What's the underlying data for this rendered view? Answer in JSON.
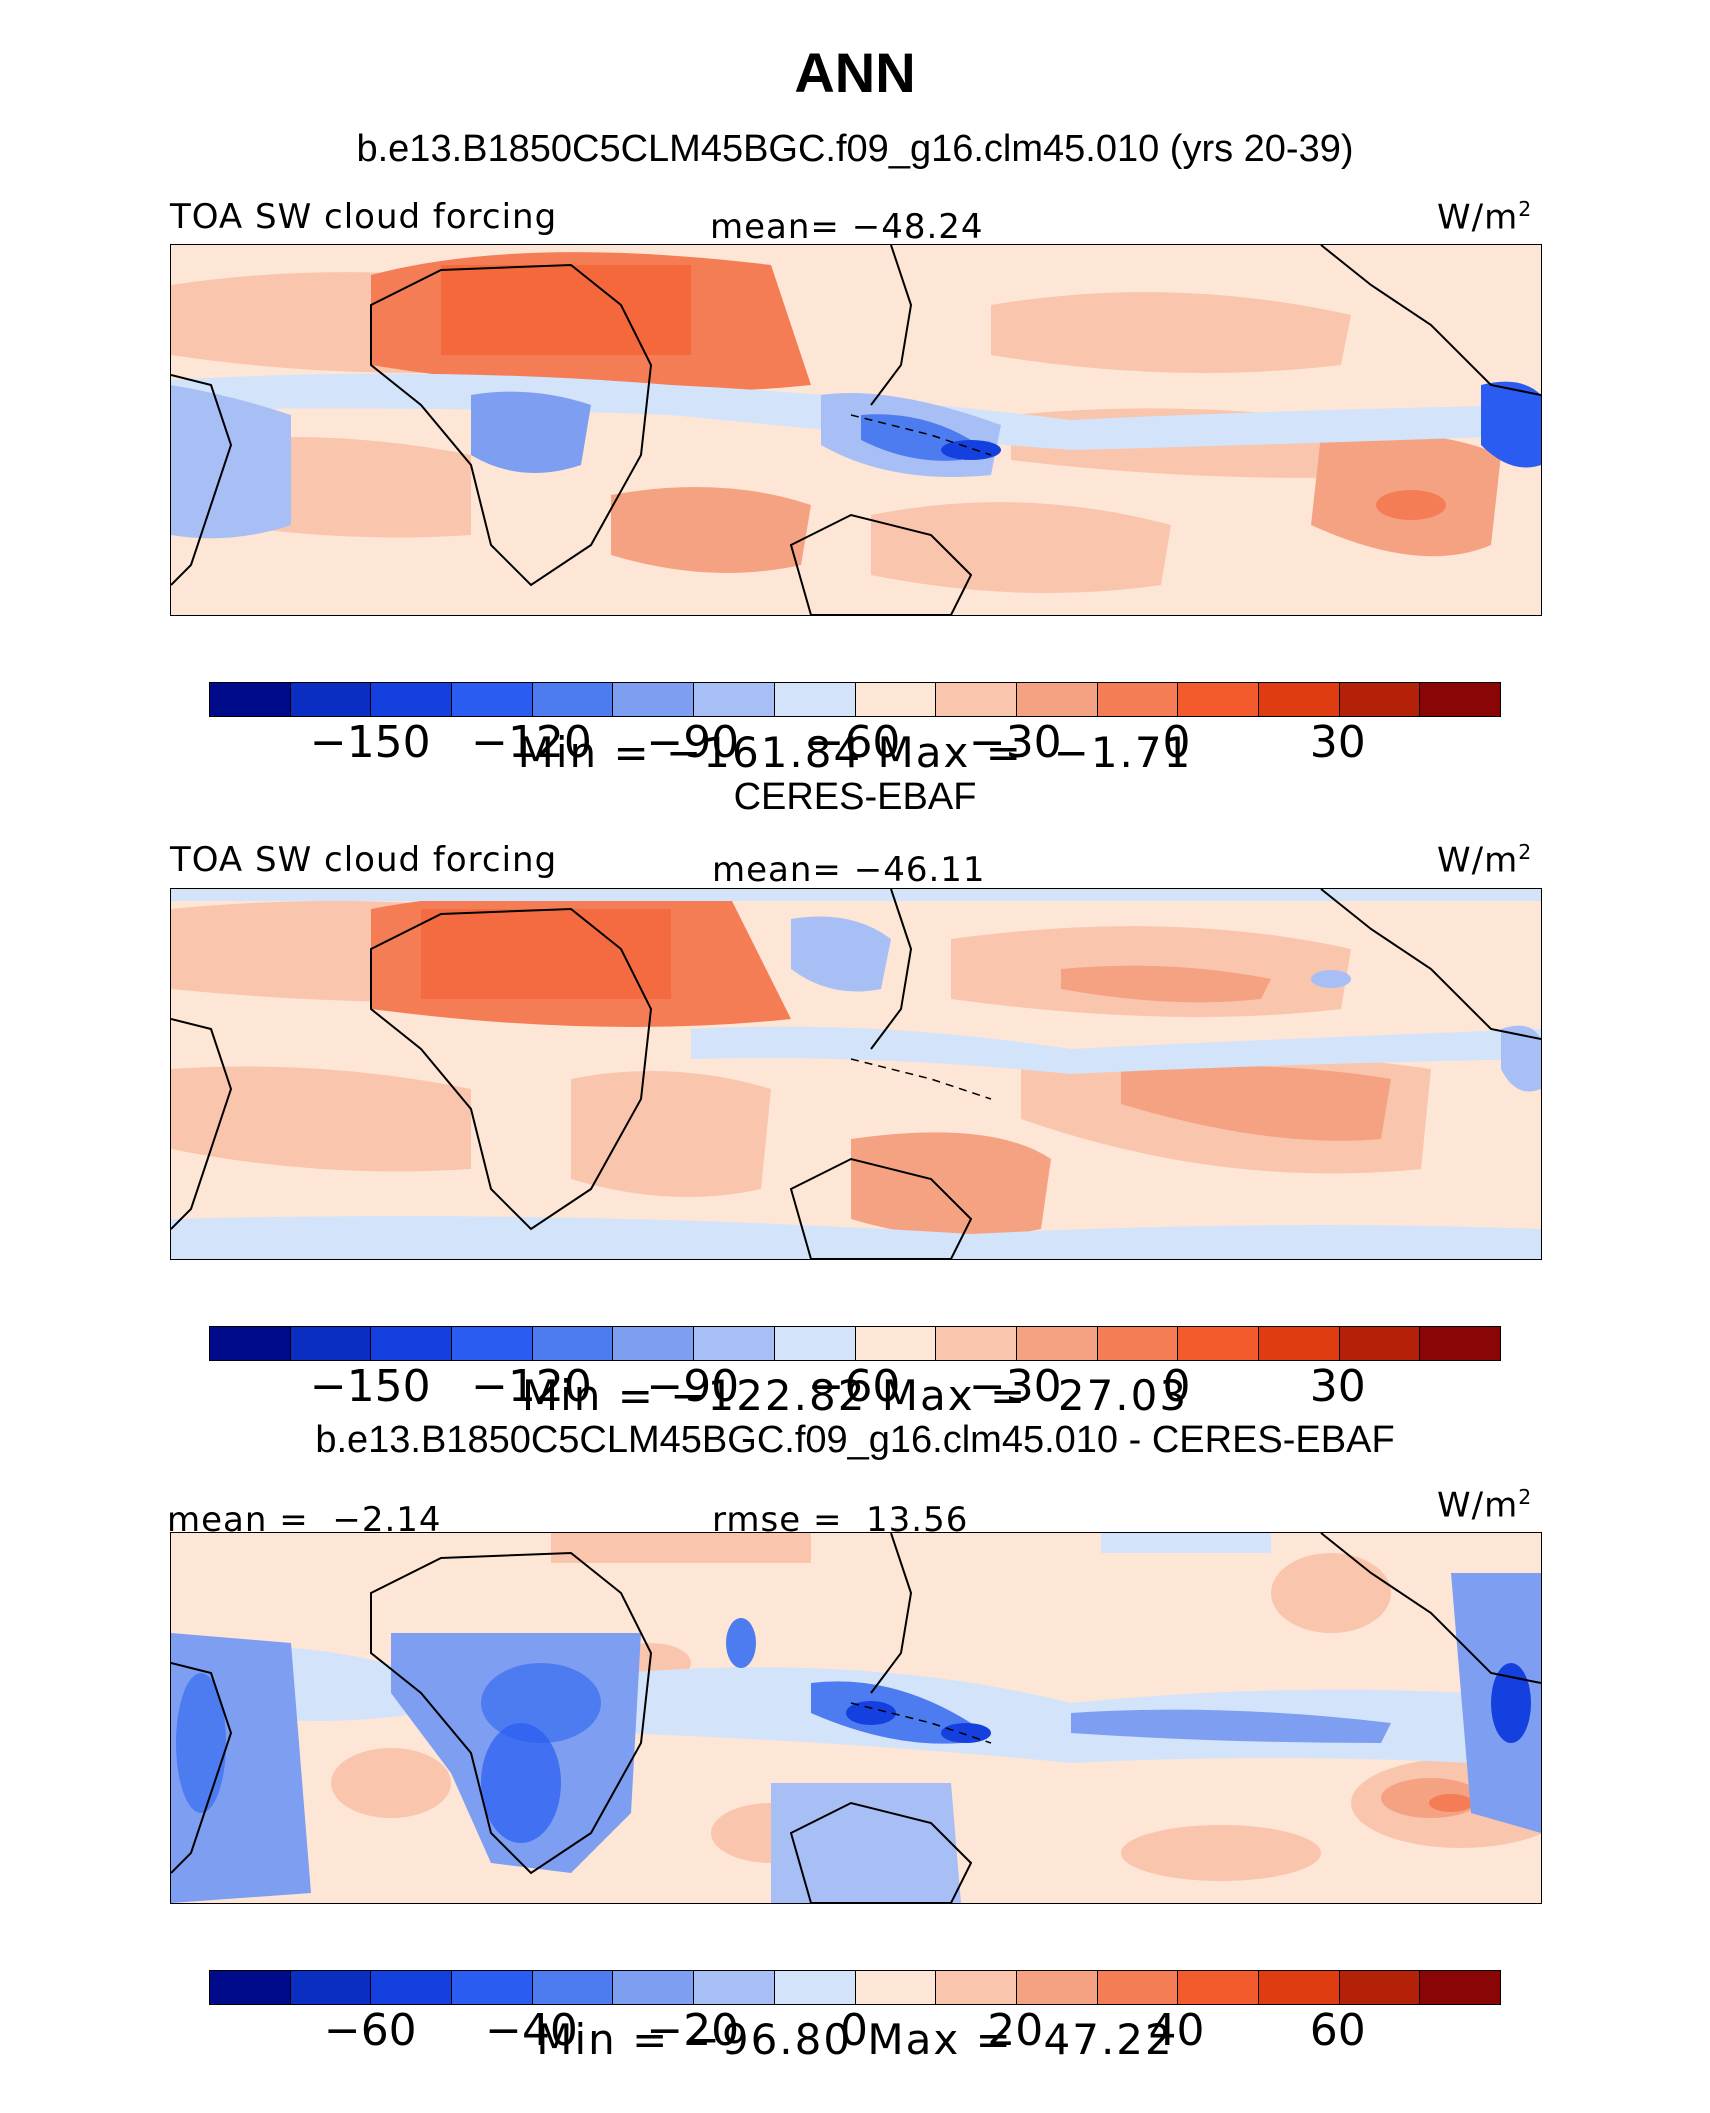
{
  "title": "ANN",
  "units_word": "W/m",
  "units_sup": "2",
  "panels": [
    {
      "heading": "b.e13.B1850C5CLM45BGC.f09_g16.clm45.010 (yrs 20-39)",
      "left_label": "TOA SW cloud forcing",
      "center_label": "mean= −48.24",
      "stats": "Min = −161.84 Max =  −1.71",
      "colorbar_colors": [
        "#000b8c",
        "#0a2ec2",
        "#1440e0",
        "#2a5cf2",
        "#4d7bf0",
        "#7e9ef2",
        "#a8bff5",
        "#d3e3fa",
        "#fde6d6",
        "#f9c5ad",
        "#f5a283",
        "#f47d56",
        "#f35a2c",
        "#e03c12",
        "#b32109",
        "#8a0505"
      ],
      "ticks": [
        "−150",
        "−120",
        "−90",
        "−60",
        "−30",
        "0",
        "30"
      ]
    },
    {
      "heading": "CERES-EBAF",
      "left_label": "TOA SW cloud forcing",
      "center_label": "mean= −46.11",
      "stats": "Min = −122.82 Max =  27.03",
      "colorbar_colors": [
        "#000b8c",
        "#0a2ec2",
        "#1440e0",
        "#2a5cf2",
        "#4d7bf0",
        "#7e9ef2",
        "#a8bff5",
        "#d3e3fa",
        "#fde6d6",
        "#f9c5ad",
        "#f5a283",
        "#f47d56",
        "#f35a2c",
        "#e03c12",
        "#b32109",
        "#8a0505"
      ],
      "ticks": [
        "−150",
        "−120",
        "−90",
        "−60",
        "−30",
        "0",
        "30"
      ]
    },
    {
      "heading": "b.e13.B1850C5CLM45BGC.f09_g16.clm45.010 - CERES-EBAF",
      "left_label": "mean =  −2.14",
      "center_label": "rmse =  13.56",
      "stats": "Min = −96.80 Max =  47.22",
      "colorbar_colors": [
        "#000b8c",
        "#0a2ec2",
        "#1440e0",
        "#2a5cf2",
        "#4d7bf0",
        "#7e9ef2",
        "#a8bff5",
        "#d3e3fa",
        "#fde6d6",
        "#f9c5ad",
        "#f5a283",
        "#f47d56",
        "#f35a2c",
        "#e03c12",
        "#b32109",
        "#8a0505"
      ],
      "ticks": [
        "−60",
        "−40",
        "−20",
        "0",
        "20",
        "40",
        "60"
      ]
    }
  ]
}
